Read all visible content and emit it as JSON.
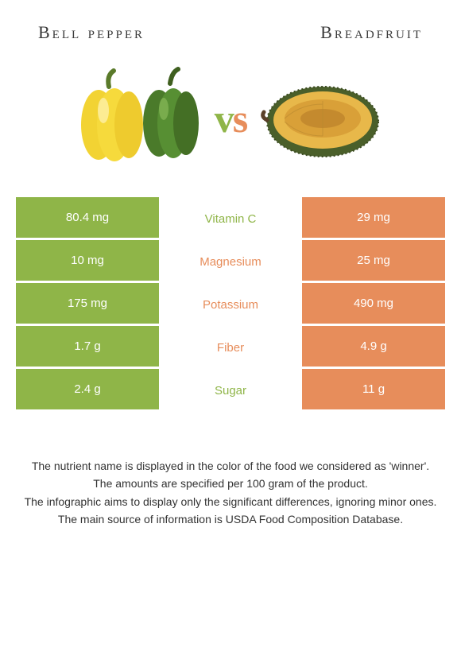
{
  "left": {
    "name": "Bell pepper",
    "color": "#8fb548"
  },
  "right": {
    "name": "Breadfruit",
    "color": "#e78d5b"
  },
  "vs_text": "vs",
  "rows": [
    {
      "label": "Vitamin C",
      "left": "80.4 mg",
      "right": "29 mg",
      "winner": "left"
    },
    {
      "label": "Magnesium",
      "left": "10 mg",
      "right": "25 mg",
      "winner": "right"
    },
    {
      "label": "Potassium",
      "left": "175 mg",
      "right": "490 mg",
      "winner": "right"
    },
    {
      "label": "Fiber",
      "left": "1.7 g",
      "right": "4.9 g",
      "winner": "right"
    },
    {
      "label": "Sugar",
      "left": "2.4 g",
      "right": "11 g",
      "winner": "left"
    }
  ],
  "footer": [
    "The nutrient name is displayed in the color of the food we considered as 'winner'.",
    "The amounts are specified per 100 gram of the product.",
    "The infographic aims to display only the significant differences, ignoring minor ones.",
    "The main source of information is USDA Food Composition Database."
  ]
}
